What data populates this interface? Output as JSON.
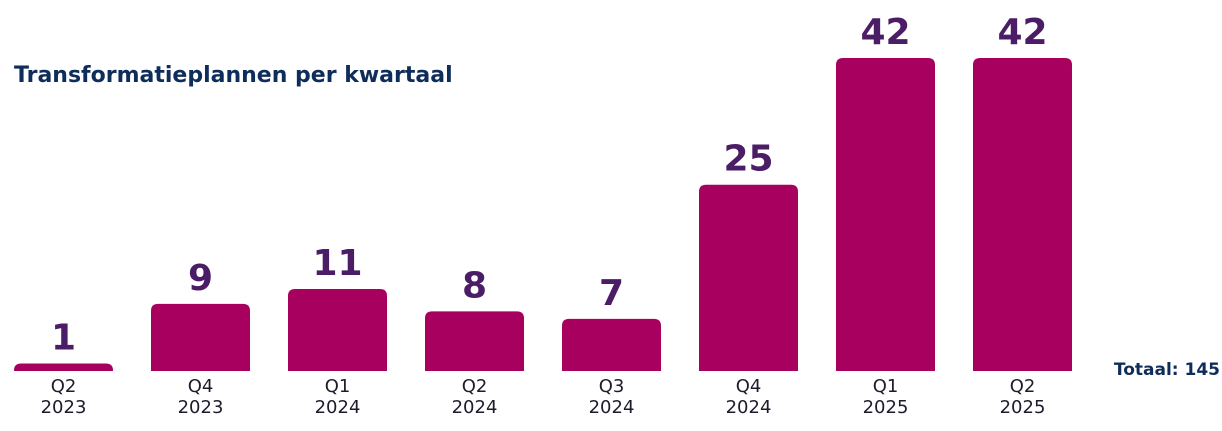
{
  "chart_data": {
    "type": "bar",
    "title": "Transformatieplannen per kwartaal",
    "categories": [
      "Q2\n2023",
      "Q4\n2023",
      "Q1\n2024",
      "Q2\n2024",
      "Q3\n2024",
      "Q4\n2024",
      "Q1\n2025",
      "Q2\n2025"
    ],
    "values": [
      1,
      9,
      11,
      8,
      7,
      25,
      42,
      42
    ],
    "color": "#a8005f",
    "annotation": "Totaal: 145"
  }
}
